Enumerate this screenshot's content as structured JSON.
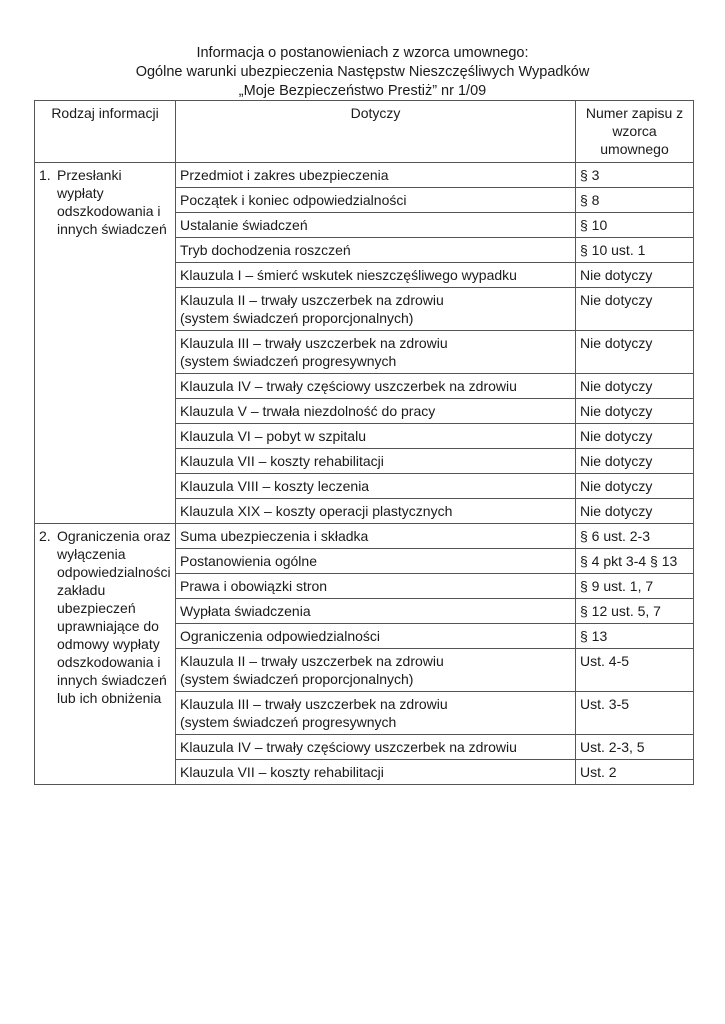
{
  "title": {
    "line1": "Informacja o postanowieniach z wzorca umownego:",
    "line2": "Ogólne warunki  ubezpieczenia Następstw Nieszczęśliwych Wypadków",
    "line3": "„Moje Bezpieczeństwo Prestiż” nr 1/09"
  },
  "headers": [
    "Rodzaj informacji",
    "Dotyczy",
    "Numer zapisu z wzorca umownego"
  ],
  "sections": [
    {
      "number": "1.",
      "label": "Przesłanki wypłaty odszkodowania i innych świadczeń",
      "rows": [
        {
          "subject": "Przedmiot i zakres ubezpieczenia",
          "ref": "§ 3"
        },
        {
          "subject": "Początek i koniec odpowiedzialności",
          "ref": "§ 8"
        },
        {
          "subject": "Ustalanie świadczeń",
          "ref": "§ 10"
        },
        {
          "subject": "Tryb dochodzenia roszczeń",
          "ref": "§ 10 ust. 1"
        },
        {
          "subject": "Klauzula I – śmierć wskutek nieszczęśliwego wypadku",
          "ref": "Nie dotyczy"
        },
        {
          "subject": "Klauzula II – trwały uszczerbek na zdrowiu",
          "subject2": "(system świadczeń proporcjonalnych)",
          "ref": "Nie dotyczy"
        },
        {
          "subject": "Klauzula III – trwały uszczerbek na zdrowiu",
          "subject2": "(system świadczeń progresywnych",
          "ref": "Nie dotyczy"
        },
        {
          "subject": "Klauzula IV – trwały częściowy  uszczerbek na zdrowiu",
          "ref": "Nie dotyczy"
        },
        {
          "subject": "Klauzula V – trwała niezdolność do pracy",
          "ref": "Nie dotyczy"
        },
        {
          "subject": "Klauzula VI – pobyt w szpitalu",
          "ref": "Nie dotyczy"
        },
        {
          "subject": "Klauzula VII – koszty rehabilitacji",
          "ref": "Nie dotyczy"
        },
        {
          "subject": "Klauzula VIII – koszty leczenia",
          "ref": "Nie dotyczy"
        },
        {
          "subject": "Klauzula XIX – koszty operacji plastycznych",
          "ref": "Nie dotyczy"
        }
      ]
    },
    {
      "number": "2.",
      "label": "Ograniczenia oraz wyłączenia odpowiedzialności zakładu ubezpieczeń uprawniające do odmowy wypłaty odszkodowania i innych świadczeń lub ich obniżenia",
      "rows": [
        {
          "subject": "Suma ubezpieczenia i składka",
          "ref": "§ 6 ust. 2-3"
        },
        {
          "subject": "Postanowienia ogólne",
          "ref": "§ 4 pkt 3-4 § 13"
        },
        {
          "subject": "Prawa i obowiązki stron",
          "ref": "§ 9 ust. 1, 7"
        },
        {
          "subject": "Wypłata świadczenia",
          "ref": "§ 12 ust. 5, 7"
        },
        {
          "subject": "Ograniczenia odpowiedzialności",
          "ref": "§ 13"
        },
        {
          "subject": "Klauzula II – trwały uszczerbek na zdrowiu",
          "subject2": "(system świadczeń proporcjonalnych)",
          "ref": "Ust. 4-5"
        },
        {
          "subject": "Klauzula III – trwały uszczerbek na zdrowiu",
          "subject2": "(system świadczeń progresywnych",
          "ref": "Ust. 3-5"
        },
        {
          "subject": "Klauzula IV – trwały częściowy uszczerbek na zdrowiu",
          "ref": "Ust. 2-3, 5"
        },
        {
          "subject": "Klauzula VII – koszty rehabilitacji",
          "ref": "Ust. 2"
        }
      ]
    }
  ]
}
